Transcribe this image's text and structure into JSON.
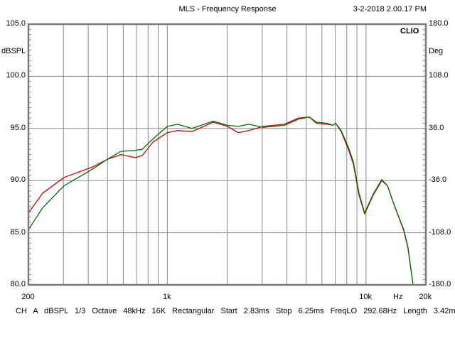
{
  "chart_data": {
    "type": "line",
    "title": "MLS - Frequency Response",
    "timestamp": "3-2-2018 2.00.17 PM",
    "brand": "CLIO",
    "xlabel": "Hz",
    "ylabel": "dBSPL",
    "y2label": "Deg",
    "xscale": "log",
    "xlim": [
      200,
      20000
    ],
    "ylim": [
      80,
      105
    ],
    "y2lim": [
      -180,
      180
    ],
    "grid": true,
    "xticks": [
      {
        "v": 200,
        "label": "200"
      },
      {
        "v": 1000,
        "label": "1k"
      },
      {
        "v": 10000,
        "label": "10k"
      },
      {
        "v": 20000,
        "label": "20k"
      }
    ],
    "yticks": [
      {
        "v": 105,
        "label": "105.0"
      },
      {
        "v": 100,
        "label": "100.0"
      },
      {
        "v": 95,
        "label": "95.0"
      },
      {
        "v": 90,
        "label": "90.0"
      },
      {
        "v": 85,
        "label": "85.0"
      },
      {
        "v": 80,
        "label": "80.0"
      }
    ],
    "y2ticks": [
      "180.0",
      "108.0",
      "36.0",
      "-36.0",
      "-108.0",
      "-180.0"
    ],
    "series": [
      {
        "name": "red",
        "color": "#d00000",
        "x": [
          200,
          236,
          302,
          420,
          495,
          584,
          688,
          747,
          846,
          1000,
          1127,
          1330,
          1702,
          2008,
          2272,
          2572,
          3034,
          3882,
          4580,
          5180,
          5625,
          6370,
          6800,
          7030,
          7500,
          8150,
          8630,
          9220,
          9840,
          10860,
          12000,
          12820,
          13900,
          15480,
          16260,
          17240,
          20000
        ],
        "y": [
          86.9,
          88.8,
          90.3,
          91.3,
          92.0,
          92.5,
          92.2,
          92.4,
          93.7,
          94.6,
          94.8,
          94.7,
          95.6,
          95.2,
          94.6,
          94.8,
          95.2,
          95.4,
          96.0,
          96.1,
          95.5,
          95.4,
          95.3,
          95.5,
          94.7,
          93.0,
          91.6,
          88.6,
          86.8,
          88.6,
          90.0,
          89.5,
          87.6,
          85.2,
          83.5,
          80.0,
          80.0
        ]
      },
      {
        "name": "green",
        "color": "#007000",
        "x": [
          200,
          236,
          302,
          420,
          495,
          584,
          688,
          747,
          846,
          1000,
          1127,
          1330,
          1702,
          2008,
          2272,
          2572,
          3034,
          3882,
          4580,
          5180,
          5625,
          6370,
          6800,
          7030,
          7500,
          8150,
          8630,
          9220,
          9840,
          10860,
          12000,
          12820,
          13900,
          15480,
          16260,
          17240,
          20000
        ],
        "y": [
          85.3,
          87.4,
          89.5,
          91.1,
          92.0,
          92.8,
          92.9,
          93.0,
          94.0,
          95.2,
          95.4,
          95.0,
          95.7,
          95.3,
          95.2,
          95.4,
          95.1,
          95.3,
          95.9,
          96.1,
          95.6,
          95.5,
          95.3,
          95.5,
          94.8,
          93.2,
          91.8,
          88.8,
          86.9,
          88.7,
          90.1,
          89.5,
          87.6,
          85.3,
          83.6,
          80.0,
          80.0
        ]
      }
    ]
  },
  "footer": "CH A   dBSPL   1/3 Octave   48kHz   16K   Rectangular   Start 2.83ms   Stop 6.25ms   FreqLO 292.68Hz   Length 3.42ms"
}
